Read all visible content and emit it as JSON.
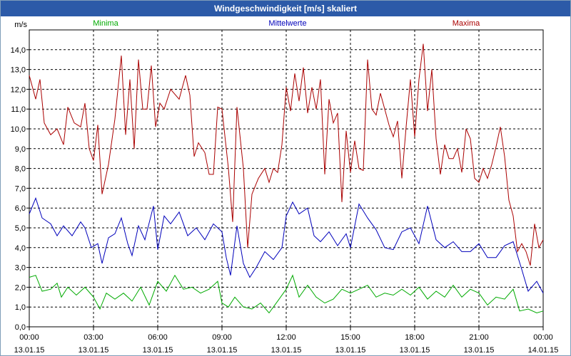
{
  "window": {
    "title": "Windgeschwindigkeit [m/s] skaliert"
  },
  "chart_data": {
    "type": "line",
    "title": "Windgeschwindigkeit [m/s] skaliert",
    "ylabel": "m/s",
    "ylim": [
      0,
      15
    ],
    "y_ticks": [
      "0,0",
      "1,0",
      "2,0",
      "3,0",
      "4,0",
      "5,0",
      "6,0",
      "7,0",
      "8,0",
      "9,0",
      "10,0",
      "11,0",
      "12,0",
      "13,0",
      "14,0"
    ],
    "x_ticks": [
      {
        "time": "00:00",
        "date": "13.01.15"
      },
      {
        "time": "03:00",
        "date": "13.01.15"
      },
      {
        "time": "06:00",
        "date": "13.01.15"
      },
      {
        "time": "09:00",
        "date": "13.01.15"
      },
      {
        "time": "12:00",
        "date": "13.01.15"
      },
      {
        "time": "15:00",
        "date": "13.01.15"
      },
      {
        "time": "18:00",
        "date": "13.01.15"
      },
      {
        "time": "21:00",
        "date": "13.01.15"
      },
      {
        "time": "00:00",
        "date": "14.01.15"
      }
    ],
    "x_range_hours": [
      0,
      24
    ],
    "series": [
      {
        "name": "Minima",
        "color": "#00aa00",
        "points": [
          [
            0,
            2.5
          ],
          [
            0.3,
            2.6
          ],
          [
            0.6,
            1.8
          ],
          [
            1.0,
            1.9
          ],
          [
            1.3,
            2.2
          ],
          [
            1.5,
            1.5
          ],
          [
            1.8,
            2.0
          ],
          [
            2.2,
            1.6
          ],
          [
            2.6,
            2.0
          ],
          [
            3.0,
            1.5
          ],
          [
            3.3,
            0.9
          ],
          [
            3.6,
            1.7
          ],
          [
            4.0,
            1.4
          ],
          [
            4.4,
            1.7
          ],
          [
            4.8,
            1.3
          ],
          [
            5.2,
            2.0
          ],
          [
            5.6,
            1.1
          ],
          [
            6.0,
            2.3
          ],
          [
            6.4,
            1.8
          ],
          [
            6.8,
            2.6
          ],
          [
            7.2,
            1.9
          ],
          [
            7.6,
            2.0
          ],
          [
            8.0,
            1.7
          ],
          [
            8.4,
            1.9
          ],
          [
            8.8,
            2.3
          ],
          [
            9.0,
            1.2
          ],
          [
            9.3,
            1.0
          ],
          [
            9.6,
            1.5
          ],
          [
            10.0,
            1.0
          ],
          [
            10.4,
            0.9
          ],
          [
            10.8,
            1.2
          ],
          [
            11.2,
            0.7
          ],
          [
            11.6,
            1.3
          ],
          [
            12.0,
            1.9
          ],
          [
            12.3,
            2.6
          ],
          [
            12.6,
            1.5
          ],
          [
            13.0,
            2.1
          ],
          [
            13.4,
            1.5
          ],
          [
            13.8,
            1.2
          ],
          [
            14.2,
            1.4
          ],
          [
            14.6,
            1.9
          ],
          [
            15.0,
            1.7
          ],
          [
            15.4,
            1.9
          ],
          [
            15.8,
            2.1
          ],
          [
            16.2,
            1.5
          ],
          [
            16.6,
            1.7
          ],
          [
            17.0,
            1.6
          ],
          [
            17.4,
            1.9
          ],
          [
            17.8,
            1.6
          ],
          [
            18.2,
            2.0
          ],
          [
            18.6,
            1.4
          ],
          [
            19.0,
            1.8
          ],
          [
            19.4,
            1.5
          ],
          [
            19.8,
            2.1
          ],
          [
            20.2,
            1.5
          ],
          [
            20.6,
            1.9
          ],
          [
            21.0,
            1.7
          ],
          [
            21.4,
            1.1
          ],
          [
            21.8,
            1.5
          ],
          [
            22.2,
            1.4
          ],
          [
            22.6,
            1.9
          ],
          [
            22.9,
            0.8
          ],
          [
            23.3,
            0.9
          ],
          [
            23.7,
            0.7
          ],
          [
            24.0,
            0.8
          ]
        ]
      },
      {
        "name": "Mittelwerte",
        "color": "#0000bb",
        "points": [
          [
            0,
            5.7
          ],
          [
            0.3,
            6.5
          ],
          [
            0.6,
            5.5
          ],
          [
            1.0,
            5.2
          ],
          [
            1.3,
            4.6
          ],
          [
            1.6,
            5.1
          ],
          [
            2.0,
            4.6
          ],
          [
            2.4,
            5.3
          ],
          [
            2.6,
            5.0
          ],
          [
            2.9,
            4.0
          ],
          [
            3.2,
            4.2
          ],
          [
            3.4,
            3.2
          ],
          [
            3.7,
            4.5
          ],
          [
            4.0,
            4.7
          ],
          [
            4.3,
            5.5
          ],
          [
            4.6,
            4.2
          ],
          [
            4.8,
            3.6
          ],
          [
            5.1,
            5.1
          ],
          [
            5.4,
            4.4
          ],
          [
            5.8,
            6.1
          ],
          [
            6.0,
            3.9
          ],
          [
            6.3,
            5.6
          ],
          [
            6.6,
            5.2
          ],
          [
            7.0,
            5.8
          ],
          [
            7.4,
            4.6
          ],
          [
            7.8,
            5.0
          ],
          [
            8.2,
            4.4
          ],
          [
            8.6,
            5.2
          ],
          [
            9.0,
            4.8
          ],
          [
            9.2,
            3.5
          ],
          [
            9.4,
            2.6
          ],
          [
            9.7,
            5.1
          ],
          [
            10.0,
            3.2
          ],
          [
            10.3,
            2.5
          ],
          [
            10.6,
            3.0
          ],
          [
            11.0,
            3.8
          ],
          [
            11.4,
            3.4
          ],
          [
            11.8,
            4.0
          ],
          [
            12.0,
            5.6
          ],
          [
            12.3,
            6.3
          ],
          [
            12.6,
            5.7
          ],
          [
            13.0,
            6.0
          ],
          [
            13.3,
            4.6
          ],
          [
            13.6,
            4.3
          ],
          [
            14.0,
            4.8
          ],
          [
            14.4,
            4.1
          ],
          [
            14.8,
            4.7
          ],
          [
            15.0,
            4.0
          ],
          [
            15.4,
            6.2
          ],
          [
            15.8,
            5.5
          ],
          [
            16.2,
            4.9
          ],
          [
            16.6,
            4.0
          ],
          [
            17.0,
            3.9
          ],
          [
            17.4,
            4.8
          ],
          [
            17.8,
            5.0
          ],
          [
            18.2,
            4.2
          ],
          [
            18.6,
            6.1
          ],
          [
            19.0,
            4.4
          ],
          [
            19.4,
            4.0
          ],
          [
            19.8,
            4.3
          ],
          [
            20.2,
            3.8
          ],
          [
            20.6,
            3.8
          ],
          [
            21.0,
            4.2
          ],
          [
            21.4,
            3.5
          ],
          [
            21.8,
            3.5
          ],
          [
            22.2,
            4.1
          ],
          [
            22.6,
            4.3
          ],
          [
            23.0,
            2.9
          ],
          [
            23.3,
            1.8
          ],
          [
            23.7,
            2.3
          ],
          [
            24.0,
            1.7
          ]
        ]
      },
      {
        "name": "Maxima",
        "color": "#aa0000",
        "points": [
          [
            0,
            12.7
          ],
          [
            0.3,
            11.5
          ],
          [
            0.5,
            12.5
          ],
          [
            0.7,
            10.3
          ],
          [
            1.0,
            9.7
          ],
          [
            1.3,
            10.0
          ],
          [
            1.6,
            9.2
          ],
          [
            1.8,
            11.1
          ],
          [
            2.1,
            10.3
          ],
          [
            2.4,
            10.1
          ],
          [
            2.6,
            11.3
          ],
          [
            2.8,
            9.0
          ],
          [
            3.0,
            8.4
          ],
          [
            3.2,
            10.2
          ],
          [
            3.4,
            6.7
          ],
          [
            3.7,
            8.2
          ],
          [
            4.0,
            10.5
          ],
          [
            4.3,
            13.7
          ],
          [
            4.5,
            9.7
          ],
          [
            4.7,
            12.5
          ],
          [
            4.9,
            9.0
          ],
          [
            5.1,
            13.5
          ],
          [
            5.3,
            11.0
          ],
          [
            5.5,
            11.0
          ],
          [
            5.7,
            13.2
          ],
          [
            5.9,
            10.1
          ],
          [
            6.1,
            11.3
          ],
          [
            6.3,
            11.0
          ],
          [
            6.6,
            12.0
          ],
          [
            7.0,
            11.5
          ],
          [
            7.3,
            12.7
          ],
          [
            7.5,
            11.7
          ],
          [
            7.7,
            8.6
          ],
          [
            7.9,
            9.3
          ],
          [
            8.2,
            8.8
          ],
          [
            8.4,
            7.7
          ],
          [
            8.6,
            7.7
          ],
          [
            8.8,
            11.1
          ],
          [
            9.0,
            11.0
          ],
          [
            9.3,
            8.0
          ],
          [
            9.5,
            5.3
          ],
          [
            9.7,
            11.1
          ],
          [
            10.0,
            8.0
          ],
          [
            10.2,
            4.0
          ],
          [
            10.4,
            6.7
          ],
          [
            10.7,
            7.5
          ],
          [
            11.0,
            8.0
          ],
          [
            11.2,
            7.3
          ],
          [
            11.4,
            8.0
          ],
          [
            11.6,
            7.8
          ],
          [
            11.8,
            9.2
          ],
          [
            12.0,
            12.1
          ],
          [
            12.2,
            10.9
          ],
          [
            12.4,
            12.8
          ],
          [
            12.6,
            11.4
          ],
          [
            12.8,
            13.1
          ],
          [
            13.0,
            10.8
          ],
          [
            13.2,
            12.1
          ],
          [
            13.4,
            11.0
          ],
          [
            13.6,
            12.5
          ],
          [
            13.8,
            7.7
          ],
          [
            14.0,
            11.5
          ],
          [
            14.2,
            10.3
          ],
          [
            14.4,
            10.8
          ],
          [
            14.6,
            6.3
          ],
          [
            14.8,
            9.9
          ],
          [
            15.0,
            7.8
          ],
          [
            15.2,
            9.4
          ],
          [
            15.4,
            8.0
          ],
          [
            15.6,
            7.9
          ],
          [
            15.8,
            13.5
          ],
          [
            16.0,
            11.0
          ],
          [
            16.2,
            10.7
          ],
          [
            16.4,
            11.8
          ],
          [
            16.6,
            11.0
          ],
          [
            16.8,
            10.2
          ],
          [
            17.0,
            9.6
          ],
          [
            17.2,
            10.4
          ],
          [
            17.4,
            7.5
          ],
          [
            17.6,
            10.1
          ],
          [
            17.8,
            12.5
          ],
          [
            18.0,
            9.6
          ],
          [
            18.2,
            12.5
          ],
          [
            18.4,
            14.3
          ],
          [
            18.6,
            10.9
          ],
          [
            18.8,
            13.0
          ],
          [
            19.0,
            9.5
          ],
          [
            19.2,
            7.7
          ],
          [
            19.4,
            9.2
          ],
          [
            19.6,
            8.5
          ],
          [
            19.8,
            8.5
          ],
          [
            20.0,
            9.0
          ],
          [
            20.2,
            7.8
          ],
          [
            20.4,
            10.0
          ],
          [
            20.6,
            9.5
          ],
          [
            20.8,
            7.5
          ],
          [
            21.0,
            7.3
          ],
          [
            21.2,
            8.0
          ],
          [
            21.4,
            7.5
          ],
          [
            21.6,
            8.2
          ],
          [
            21.8,
            9.1
          ],
          [
            22.0,
            10.1
          ],
          [
            22.2,
            8.6
          ],
          [
            22.4,
            6.4
          ],
          [
            22.6,
            5.6
          ],
          [
            22.8,
            3.8
          ],
          [
            23.0,
            4.2
          ],
          [
            23.2,
            3.8
          ],
          [
            23.4,
            3.1
          ],
          [
            23.6,
            5.2
          ],
          [
            23.8,
            4.0
          ],
          [
            24.0,
            4.4
          ]
        ]
      }
    ],
    "legend": [
      "Minima",
      "Mittelwerte",
      "Maxima"
    ],
    "grid": true
  }
}
